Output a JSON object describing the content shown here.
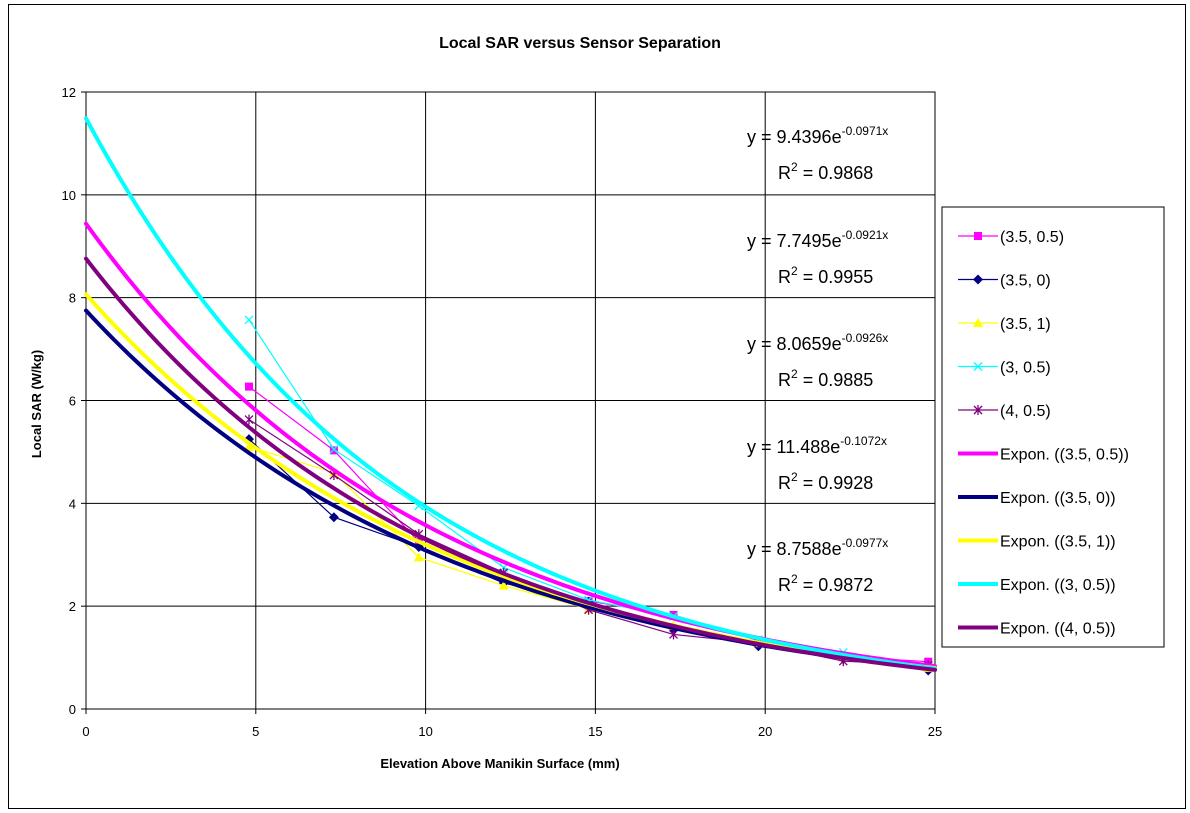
{
  "chart_data": {
    "type": "scatter",
    "title": "Local SAR versus Sensor Separation",
    "xlabel": "Elevation Above Manikin Surface (mm)",
    "ylabel": "Local SAR (W/kg)",
    "xlim": [
      0,
      25
    ],
    "ylim": [
      0,
      12
    ],
    "xticks": [
      "0",
      "5",
      "10",
      "15",
      "20",
      "25"
    ],
    "yticks": [
      "0",
      "2",
      "4",
      "6",
      "8",
      "10",
      "12"
    ],
    "grid": true,
    "legend_position": "right",
    "series": [
      {
        "name": "(3.5, 0.5)",
        "color": "#ff00ff",
        "marker": "square",
        "x": [
          4.8,
          7.3,
          9.8,
          12.3,
          14.8,
          17.3,
          19.8,
          22.3,
          24.8
        ],
        "y": [
          6.27,
          5.03,
          3.25,
          2.55,
          2.1,
          1.83,
          1.33,
          1.02,
          0.92
        ]
      },
      {
        "name": "(3.5, 0)",
        "color": "#000080",
        "marker": "diamond",
        "x": [
          4.8,
          7.3,
          9.8,
          12.3,
          14.8,
          17.3,
          19.8,
          22.3,
          24.8
        ],
        "y": [
          5.25,
          3.73,
          3.15,
          2.45,
          2.08,
          1.55,
          1.22,
          0.97,
          0.75
        ]
      },
      {
        "name": "(3.5, 1)",
        "color": "#ffff00",
        "marker": "triangle",
        "x": [
          4.8,
          7.3,
          9.8,
          12.3,
          14.8,
          17.3,
          19.8,
          22.3,
          24.8
        ],
        "y": [
          5.1,
          4.6,
          2.95,
          2.4,
          1.95,
          1.62,
          1.28,
          1.0,
          0.8
        ]
      },
      {
        "name": "(3, 0.5)",
        "color": "#00ffff",
        "marker": "x",
        "x": [
          4.8,
          7.3,
          9.8,
          12.3,
          14.8,
          17.3,
          19.8,
          22.3,
          24.8
        ],
        "y": [
          7.57,
          5.05,
          3.95,
          2.75,
          2.12,
          1.8,
          1.35,
          1.1,
          0.85
        ]
      },
      {
        "name": "(4, 0.5)",
        "color": "#800080",
        "marker": "star",
        "x": [
          4.8,
          7.3,
          9.8,
          12.3,
          14.8,
          17.3,
          19.8,
          22.3,
          24.8
        ],
        "y": [
          5.63,
          4.55,
          3.4,
          2.65,
          1.93,
          1.45,
          1.28,
          0.93,
          0.85
        ]
      }
    ],
    "trendlines": [
      {
        "name": "Expon. ((3.5, 0.5))",
        "color": "#ff00ff",
        "a": 9.4396,
        "b": -0.0971
      },
      {
        "name": "Expon. ((3.5, 0))",
        "color": "#000080",
        "a": 7.7495,
        "b": -0.0921
      },
      {
        "name": "Expon. ((3.5, 1))",
        "color": "#ffff00",
        "a": 8.0659,
        "b": -0.0926
      },
      {
        "name": "Expon. ((3, 0.5))",
        "color": "#00ffff",
        "a": 11.488,
        "b": -0.1072
      },
      {
        "name": "Expon. ((4, 0.5))",
        "color": "#800080",
        "a": 8.7588,
        "b": -0.0977
      }
    ],
    "annotations": [
      {
        "eq_base": "y = 9.4396e",
        "eq_exp": "-0.0971x",
        "r2_label": "R",
        "r2_value": " = 0.9868"
      },
      {
        "eq_base": "y = 7.7495e",
        "eq_exp": "-0.0921x",
        "r2_label": "R",
        "r2_value": " = 0.9955"
      },
      {
        "eq_base": "y = 8.0659e",
        "eq_exp": "-0.0926x",
        "r2_label": "R",
        "r2_value": " = 0.9885"
      },
      {
        "eq_base": "y = 11.488e",
        "eq_exp": "-0.1072x",
        "r2_label": "R",
        "r2_value": " = 0.9928"
      },
      {
        "eq_base": "y = 8.7588e",
        "eq_exp": "-0.0977x",
        "r2_label": "R",
        "r2_value": " = 0.9872"
      }
    ]
  }
}
